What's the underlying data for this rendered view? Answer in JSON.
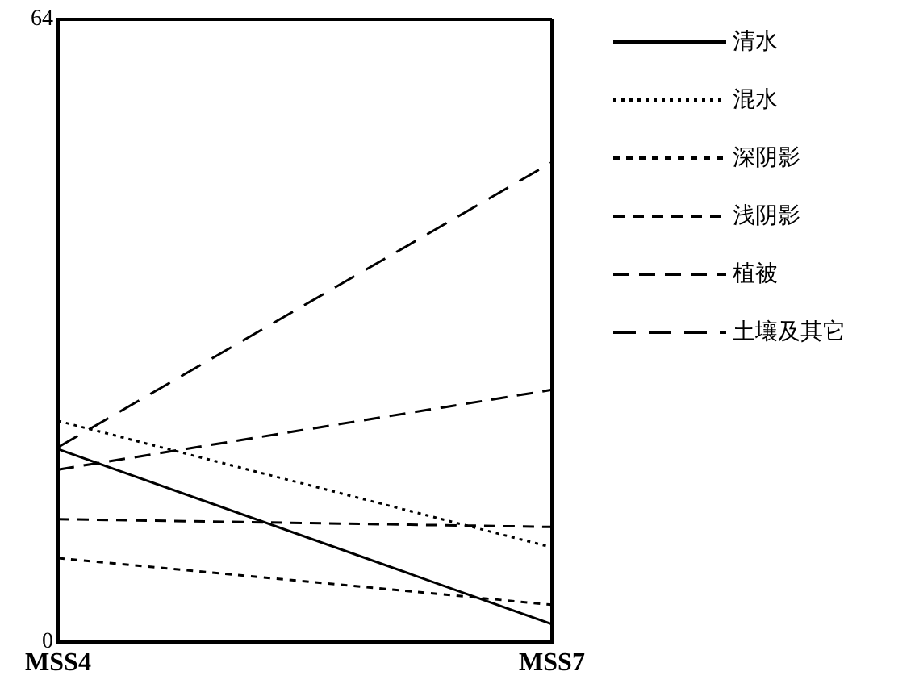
{
  "chart_data": {
    "type": "line",
    "categories": [
      "MSS4",
      "MSS7"
    ],
    "series": [
      {
        "name": "清水",
        "color": "#000000",
        "line_style": "solid",
        "values": [
          19.8,
          1.8
        ]
      },
      {
        "name": "混水",
        "color": "#000000",
        "line_style": "dotted",
        "values": [
          22.7,
          9.7
        ]
      },
      {
        "name": "深阴影",
        "color": "#000000",
        "line_style": "dashed",
        "values": [
          8.6,
          3.8
        ]
      },
      {
        "name": "浅阴影",
        "color": "#000000",
        "line_style": "dashed",
        "values": [
          12.6,
          11.8
        ]
      },
      {
        "name": "植被",
        "color": "#000000",
        "line_style": "dashed",
        "values": [
          17.7,
          25.9
        ]
      },
      {
        "name": "土壤及其它",
        "color": "#000000",
        "line_style": "dashed",
        "values": [
          20.0,
          49.3
        ]
      }
    ],
    "ylim": [
      0,
      64
    ],
    "yticks": [
      0,
      64
    ],
    "legend": "right",
    "marker": "none"
  }
}
